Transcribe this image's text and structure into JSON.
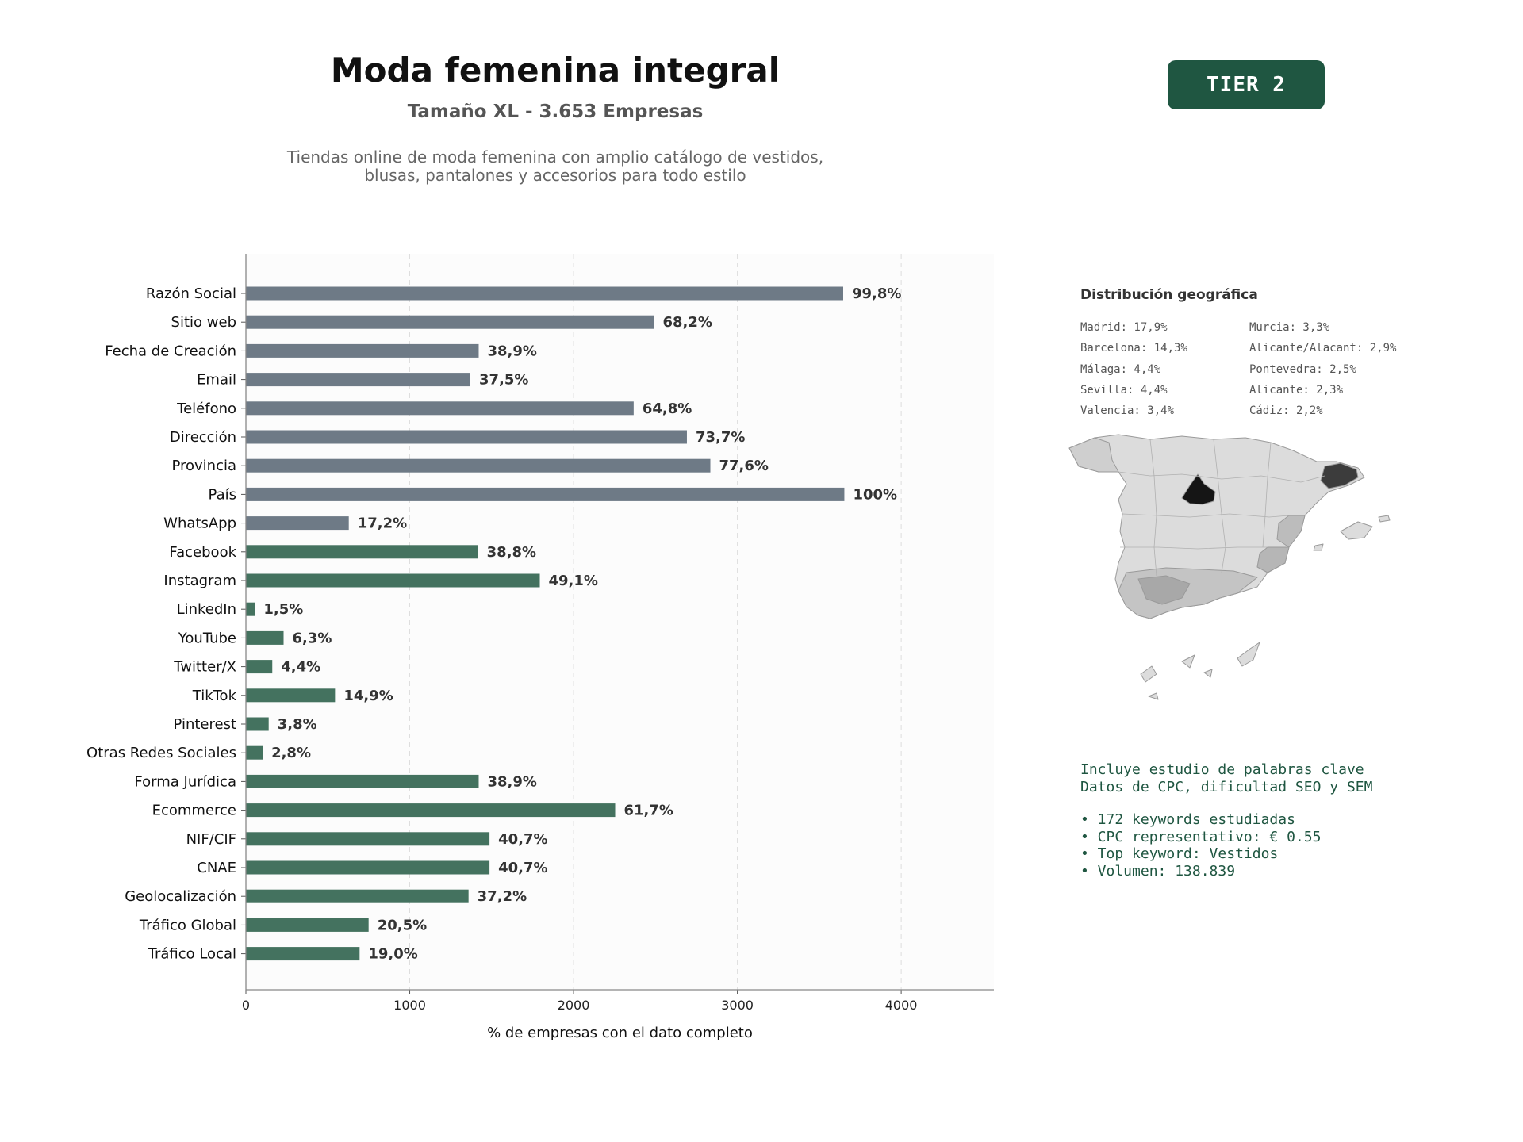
{
  "header": {
    "title": "Moda femenina integral",
    "subtitle": "Tamaño XL - 3.653 Empresas",
    "description_line1": "Tiendas online de moda femenina con amplio catálogo de vestidos,",
    "description_line2": "blusas, pantalones y accesorios para todo estilo",
    "tier_badge": "TIER 2"
  },
  "colors": {
    "gray_bar": "#6e7a86",
    "green_bar": "#44725f",
    "badge": "#1f5641",
    "text_green": "#1f5641"
  },
  "chart_data": {
    "type": "bar",
    "orientation": "horizontal",
    "categories": [
      "Razón Social",
      "Sitio web",
      "Fecha de Creación",
      "Email",
      "Teléfono",
      "Dirección",
      "Provincia",
      "País",
      "WhatsApp",
      "Facebook",
      "Instagram",
      "LinkedIn",
      "YouTube",
      "Twitter/X",
      "TikTok",
      "Pinterest",
      "Otras Redes Sociales",
      "Forma Jurídica",
      "Ecommerce",
      "NIF/CIF",
      "CNAE",
      "Geolocalización",
      "Tráfico Global",
      "Tráfico Local"
    ],
    "values": [
      3646,
      2491,
      1421,
      1370,
      2367,
      2692,
      2835,
      3653,
      628,
      1417,
      1794,
      55,
      230,
      161,
      544,
      139,
      102,
      1421,
      2254,
      1487,
      1487,
      1359,
      749,
      694
    ],
    "labels": [
      "99,8%",
      "68,2%",
      "38,9%",
      "37,5%",
      "64,8%",
      "73,7%",
      "77,6%",
      "100%",
      "17,2%",
      "38,8%",
      "49,1%",
      "1,5%",
      "6,3%",
      "4,4%",
      "14,9%",
      "3,8%",
      "2,8%",
      "38,9%",
      "61,7%",
      "40,7%",
      "40,7%",
      "37,2%",
      "20,5%",
      "19,0%"
    ],
    "bar_colors": [
      "gray",
      "gray",
      "gray",
      "gray",
      "gray",
      "gray",
      "gray",
      "gray",
      "gray",
      "green",
      "green",
      "green",
      "green",
      "green",
      "green",
      "green",
      "green",
      "green",
      "green",
      "green",
      "green",
      "green",
      "green",
      "green"
    ],
    "xlabel": "% de empresas con el dato completo",
    "xlim": [
      0,
      4566
    ],
    "xticks": [
      0,
      1000,
      2000,
      3000,
      4000
    ],
    "grid": "vertical dashed"
  },
  "geo": {
    "title": "Distribución geográfica",
    "col1": [
      "Madrid: 17,9%",
      "Barcelona: 14,3%",
      "Málaga: 4,4%",
      "Sevilla: 4,4%",
      "Valencia: 3,4%"
    ],
    "col2": [
      "Murcia: 3,3%",
      "Alicante/Alacant: 2,9%",
      "Pontevedra: 2,5%",
      "Alicante: 2,3%",
      "Cádiz: 2,2%"
    ]
  },
  "keywords": {
    "line1": "Incluye estudio de palabras clave",
    "line2": "Datos de CPC, dificultad SEO y SEM",
    "bullet1": "• 172 keywords estudiadas",
    "bullet2": "• CPC representativo: € 0.55",
    "bullet3": "• Top keyword: Vestidos",
    "bullet4": "• Volumen: 138.839"
  }
}
